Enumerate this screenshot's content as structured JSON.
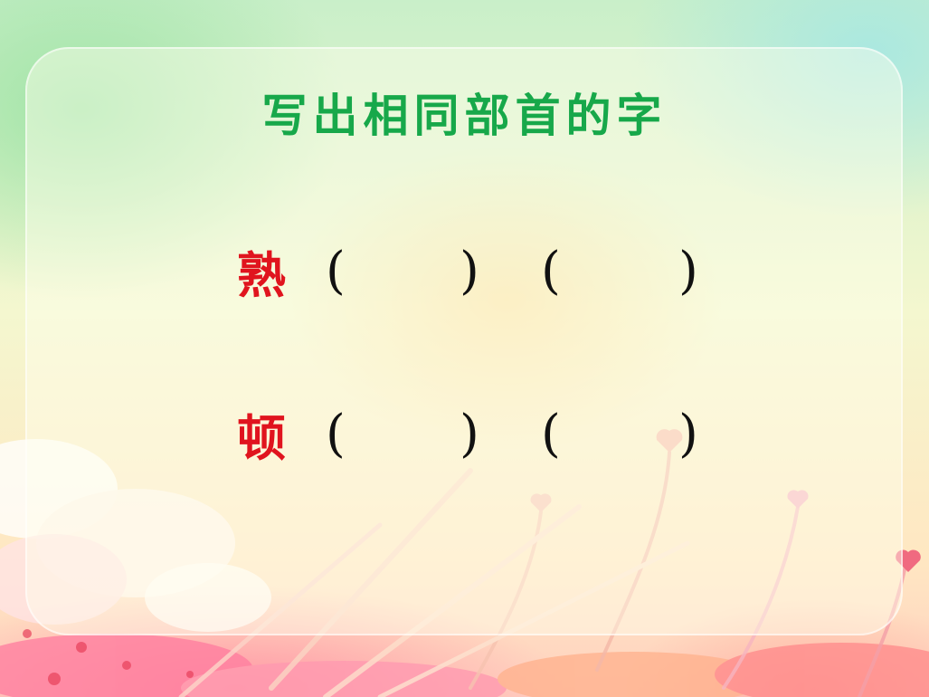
{
  "title": "写出相同部首的字",
  "rows": [
    {
      "char": "熟",
      "open": "(",
      "close": ")"
    },
    {
      "char": "顿",
      "open": "(",
      "close": ")"
    }
  ],
  "colors": {
    "title": "#17a84a",
    "character": "#e0141e",
    "paren": "#111111"
  }
}
